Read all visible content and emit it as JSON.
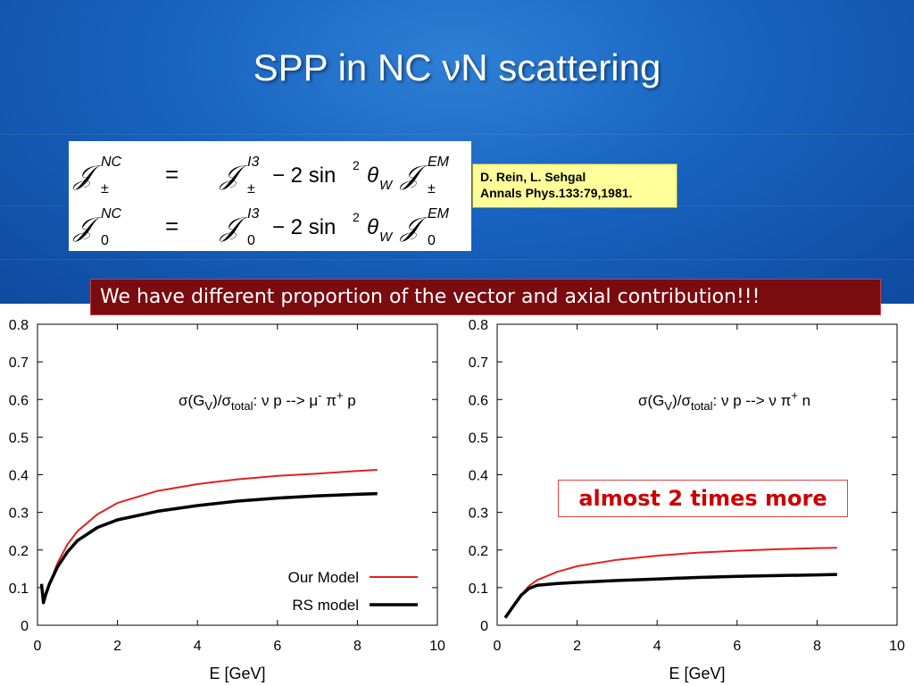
{
  "slide": {
    "title": "SPP in NC νN scattering",
    "formula": {
      "row1": {
        "lhs_script": "NC",
        "lhs_sub": "±",
        "eq": "=",
        "term1_sup": "I3",
        "term1_sub": "±",
        "minus": "− 2 sin",
        "sq": "2",
        "theta": "θ",
        "theta_sub": "W",
        "term2_sup": "EM",
        "term2_sub": "±"
      },
      "row2": {
        "lhs_script": "NC",
        "lhs_sub": "0",
        "eq": "=",
        "term1_sup": "I3",
        "term1_sub": "0",
        "minus": "− 2 sin",
        "sq": "2",
        "theta": "θ",
        "theta_sub": "W",
        "term2_sup": "EM",
        "term2_sub": "0"
      },
      "symbol": "𝒥"
    },
    "reference": {
      "line1": "D. Rein, L. Sehgal",
      "line2": "Annals Phys.133:79,1981."
    },
    "banner": "We have different proportion of the vector and axial contribution!!!",
    "callout": "almost 2 times more"
  },
  "chart_data": [
    {
      "type": "line",
      "xlabel": "E [GeV]",
      "ylabel": "",
      "xlim": [
        0,
        10
      ],
      "ylim": [
        0,
        0.8
      ],
      "xticks": [
        "0",
        "2",
        "4",
        "6",
        "8",
        "10"
      ],
      "yticks": [
        "0",
        "0.1",
        "0.2",
        "0.3",
        "0.4",
        "0.5",
        "0.6",
        "0.7",
        "0.8"
      ],
      "annotation": {
        "sigma": "σ(G",
        "V": "V",
        "rest1": ")/σ",
        "total": "total",
        "rest2": ": ν p --> μ",
        "minus": "-",
        "pi": " π",
        "plus": "+",
        "end": " p"
      },
      "legend": {
        "position": "bottom-right",
        "entries": [
          "Our Model",
          "RS model"
        ]
      },
      "series": [
        {
          "name": "Our Model",
          "color": "#e32020",
          "x": [
            0.15,
            0.3,
            0.5,
            0.75,
            1.0,
            1.5,
            2.0,
            3.0,
            4.0,
            5.0,
            6.0,
            7.0,
            8.0,
            8.5
          ],
          "y": [
            0.06,
            0.11,
            0.165,
            0.215,
            0.25,
            0.295,
            0.325,
            0.357,
            0.375,
            0.388,
            0.397,
            0.403,
            0.41,
            0.413
          ]
        },
        {
          "name": "RS model",
          "color": "#000000",
          "x": [
            0.1,
            0.15,
            0.2,
            0.3,
            0.5,
            0.75,
            1.0,
            1.5,
            2.0,
            3.0,
            4.0,
            5.0,
            6.0,
            7.0,
            8.0,
            8.5
          ],
          "y": [
            0.11,
            0.06,
            0.08,
            0.11,
            0.155,
            0.195,
            0.225,
            0.26,
            0.28,
            0.303,
            0.318,
            0.33,
            0.338,
            0.344,
            0.348,
            0.35
          ]
        }
      ]
    },
    {
      "type": "line",
      "xlabel": "E [GeV]",
      "ylabel": "",
      "xlim": [
        0,
        10
      ],
      "ylim": [
        0,
        0.8
      ],
      "xticks": [
        "0",
        "2",
        "4",
        "6",
        "8",
        "10"
      ],
      "yticks": [
        "0",
        "0.1",
        "0.2",
        "0.3",
        "0.4",
        "0.5",
        "0.6",
        "0.7",
        "0.8"
      ],
      "annotation": {
        "sigma": "σ(G",
        "V": "V",
        "rest1": ")/σ",
        "total": "total",
        "rest2": ": ν p --> ν",
        "minus": "",
        "pi": " π",
        "plus": "+",
        "end": " n"
      },
      "legend": null,
      "series": [
        {
          "name": "",
          "color": "#e32020",
          "x": [
            0.2,
            0.4,
            0.6,
            0.8,
            1.0,
            1.5,
            2.0,
            3.0,
            4.0,
            5.0,
            6.0,
            7.0,
            8.0,
            8.5
          ],
          "y": [
            0.02,
            0.05,
            0.08,
            0.105,
            0.12,
            0.142,
            0.157,
            0.174,
            0.185,
            0.193,
            0.198,
            0.202,
            0.205,
            0.206
          ]
        },
        {
          "name": "",
          "color": "#000000",
          "x": [
            0.2,
            0.4,
            0.6,
            0.8,
            1.0,
            1.5,
            2.0,
            3.0,
            4.0,
            5.0,
            6.0,
            7.0,
            8.0,
            8.5
          ],
          "y": [
            0.02,
            0.05,
            0.08,
            0.098,
            0.106,
            0.111,
            0.114,
            0.119,
            0.123,
            0.127,
            0.13,
            0.132,
            0.134,
            0.135
          ]
        }
      ]
    }
  ]
}
